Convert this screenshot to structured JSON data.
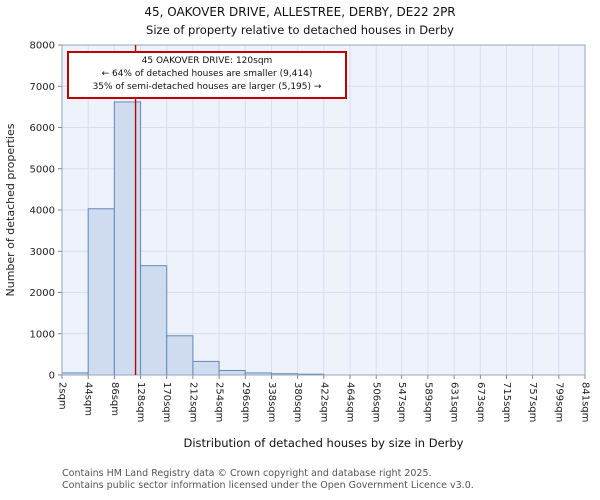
{
  "footer": {
    "line1": "Contains HM Land Registry data © Crown copyright and database right 2025.",
    "line2": "Contains public sector information licensed under the Open Government Licence v3.0."
  },
  "chart_data": {
    "type": "bar",
    "title": "45, OAKOVER DRIVE, ALLESTREE, DERBY, DE22 2PR",
    "subtitle": "Size of property relative to detached houses in Derby",
    "xlabel": "Distribution of detached houses by size in Derby",
    "ylabel": "Number of detached properties",
    "bin_edges": [
      2,
      44,
      86,
      128,
      170,
      212,
      254,
      296,
      338,
      380,
      422,
      464,
      506,
      547,
      589,
      631,
      673,
      715,
      757,
      799,
      841
    ],
    "tick_label_suffix": "sqm",
    "counts": [
      50,
      4030,
      6620,
      2650,
      950,
      330,
      110,
      50,
      30,
      20,
      0,
      0,
      0,
      0,
      0,
      0,
      0,
      0,
      0,
      0
    ],
    "ylim": [
      0,
      8000
    ],
    "ytick_step": 1000,
    "grid": true,
    "legend": "none",
    "marker": {
      "label": "45 OAKOVER DRIVE",
      "value_sqm": 120,
      "color": "#bb0000"
    },
    "annotation": {
      "line1": "45 OAKOVER DRIVE: 120sqm",
      "line2": "← 64% of detached houses are smaller (9,414)",
      "line3": "35% of semi-detached houses are larger (5,195) →"
    },
    "colors": {
      "bar_fill": "#cfdcf0",
      "bar_stroke": "#6288bd",
      "grid": "#d8def0",
      "plot_bg": "#eef2fb",
      "plot_border": "#9aa5bb",
      "axis_text": "#222222",
      "annotation_border": "#c00000"
    }
  }
}
